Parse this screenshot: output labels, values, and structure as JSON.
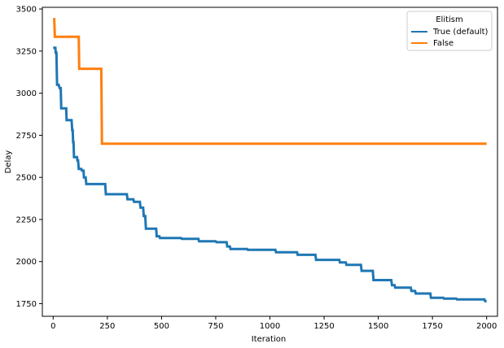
{
  "chart_data": {
    "type": "line",
    "xlabel": "Iteration",
    "ylabel": "Delay",
    "xlim": [
      -50,
      2050
    ],
    "ylim": [
      1675,
      3510
    ],
    "xticks": [
      0,
      250,
      500,
      750,
      1000,
      1250,
      1500,
      1750,
      2000
    ],
    "yticks": [
      1750,
      2000,
      2250,
      2500,
      2750,
      3000,
      3250,
      3500
    ],
    "grid": false,
    "legend": {
      "title": "Elitism",
      "placement": "top-right",
      "entries": [
        "True (default)",
        "False"
      ]
    },
    "series": [
      {
        "name": "True (default)",
        "color": "#1f77b4",
        "points": [
          [
            0,
            3270
          ],
          [
            10,
            3270
          ],
          [
            12,
            3240
          ],
          [
            15,
            3240
          ],
          [
            18,
            3050
          ],
          [
            25,
            3050
          ],
          [
            30,
            3030
          ],
          [
            35,
            3030
          ],
          [
            37,
            2910
          ],
          [
            60,
            2910
          ],
          [
            62,
            2840
          ],
          [
            85,
            2840
          ],
          [
            88,
            2780
          ],
          [
            90,
            2780
          ],
          [
            92,
            2710
          ],
          [
            94,
            2710
          ],
          [
            96,
            2620
          ],
          [
            110,
            2620
          ],
          [
            112,
            2600
          ],
          [
            115,
            2600
          ],
          [
            118,
            2550
          ],
          [
            130,
            2550
          ],
          [
            133,
            2540
          ],
          [
            140,
            2540
          ],
          [
            142,
            2500
          ],
          [
            150,
            2500
          ],
          [
            153,
            2460
          ],
          [
            240,
            2460
          ],
          [
            243,
            2400
          ],
          [
            340,
            2400
          ],
          [
            343,
            2370
          ],
          [
            370,
            2370
          ],
          [
            373,
            2355
          ],
          [
            400,
            2355
          ],
          [
            403,
            2320
          ],
          [
            415,
            2320
          ],
          [
            418,
            2270
          ],
          [
            425,
            2270
          ],
          [
            428,
            2195
          ],
          [
            475,
            2195
          ],
          [
            478,
            2150
          ],
          [
            490,
            2150
          ],
          [
            493,
            2140
          ],
          [
            590,
            2140
          ],
          [
            593,
            2135
          ],
          [
            670,
            2135
          ],
          [
            673,
            2120
          ],
          [
            750,
            2120
          ],
          [
            753,
            2115
          ],
          [
            800,
            2115
          ],
          [
            803,
            2090
          ],
          [
            815,
            2090
          ],
          [
            818,
            2075
          ],
          [
            895,
            2075
          ],
          [
            898,
            2070
          ],
          [
            1025,
            2070
          ],
          [
            1028,
            2055
          ],
          [
            1125,
            2055
          ],
          [
            1128,
            2040
          ],
          [
            1210,
            2040
          ],
          [
            1213,
            2010
          ],
          [
            1320,
            2010
          ],
          [
            1323,
            1995
          ],
          [
            1350,
            1995
          ],
          [
            1353,
            1980
          ],
          [
            1420,
            1980
          ],
          [
            1423,
            1945
          ],
          [
            1475,
            1945
          ],
          [
            1478,
            1890
          ],
          [
            1560,
            1890
          ],
          [
            1563,
            1860
          ],
          [
            1575,
            1860
          ],
          [
            1578,
            1845
          ],
          [
            1650,
            1845
          ],
          [
            1653,
            1825
          ],
          [
            1670,
            1825
          ],
          [
            1673,
            1810
          ],
          [
            1740,
            1810
          ],
          [
            1743,
            1785
          ],
          [
            1800,
            1785
          ],
          [
            1803,
            1780
          ],
          [
            1860,
            1780
          ],
          [
            1863,
            1775
          ],
          [
            1990,
            1775
          ],
          [
            1993,
            1765
          ],
          [
            2000,
            1765
          ]
        ]
      },
      {
        "name": "False",
        "color": "#ff7f0e",
        "points": [
          [
            0,
            3440
          ],
          [
            5,
            3440
          ],
          [
            8,
            3335
          ],
          [
            118,
            3335
          ],
          [
            120,
            3145
          ],
          [
            222,
            3145
          ],
          [
            225,
            2700
          ],
          [
            2000,
            2700
          ]
        ]
      }
    ]
  }
}
